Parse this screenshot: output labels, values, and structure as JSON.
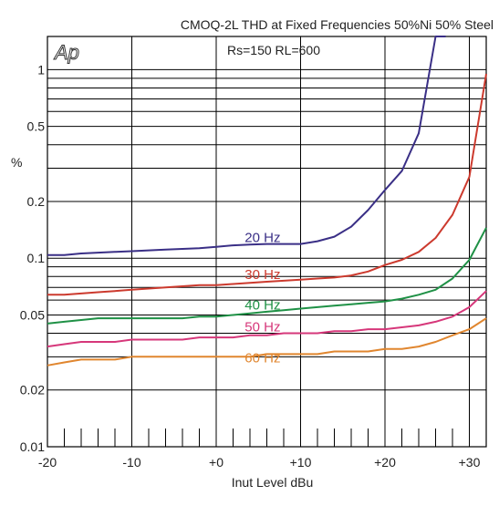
{
  "chart_data": {
    "type": "line",
    "title": "CMOQ-2L  THD at Fixed Frequencies  50%Ni 50% Steel",
    "subtitle": "Rs=150  RL=600",
    "logo": "Ap",
    "xlabel": "Inut Level  dBu",
    "ylabel": "%",
    "xlim": [
      -20,
      32
    ],
    "ylim": [
      0.01,
      1.5
    ],
    "yscale": "log",
    "grid": true,
    "x_ticks": [
      -20,
      -10,
      0,
      10,
      20,
      30
    ],
    "x_tick_labels": [
      "-20",
      "-10",
      "+0",
      "+10",
      "+20",
      "+30"
    ],
    "y_ticks": [
      0.01,
      0.02,
      0.05,
      0.1,
      0.2,
      0.5,
      1
    ],
    "y_tick_labels": [
      "0.01",
      "0.02",
      "0.05",
      "0.1",
      "0.2",
      "0.5",
      "1"
    ],
    "series": [
      {
        "name": "20 Hz",
        "color": "#3a2f86",
        "x": [
          -20,
          -18,
          -16,
          -14,
          -12,
          -10,
          -8,
          -6,
          -4,
          -2,
          0,
          2,
          4,
          6,
          8,
          10,
          12,
          14,
          16,
          18,
          20,
          22,
          24,
          26,
          27.2
        ],
        "y": [
          0.104,
          0.104,
          0.106,
          0.107,
          0.108,
          0.109,
          0.11,
          0.111,
          0.112,
          0.113,
          0.115,
          0.117,
          0.118,
          0.119,
          0.119,
          0.119,
          0.123,
          0.13,
          0.147,
          0.18,
          0.23,
          0.29,
          0.46,
          1.5,
          1.5
        ]
      },
      {
        "name": "30 Hz",
        "color": "#cc3a2e",
        "x": [
          -20,
          -18,
          -16,
          -14,
          -12,
          -10,
          -8,
          -6,
          -4,
          -2,
          0,
          2,
          4,
          6,
          8,
          10,
          12,
          14,
          16,
          18,
          20,
          22,
          24,
          26,
          28,
          30,
          32
        ],
        "y": [
          0.064,
          0.064,
          0.065,
          0.066,
          0.067,
          0.068,
          0.069,
          0.07,
          0.071,
          0.072,
          0.072,
          0.073,
          0.074,
          0.075,
          0.076,
          0.077,
          0.078,
          0.079,
          0.081,
          0.085,
          0.092,
          0.098,
          0.108,
          0.128,
          0.17,
          0.27,
          0.95
        ]
      },
      {
        "name": "40 Hz",
        "color": "#1f9146",
        "x": [
          -20,
          -18,
          -16,
          -14,
          -12,
          -10,
          -8,
          -6,
          -4,
          -2,
          0,
          2,
          4,
          6,
          8,
          10,
          12,
          14,
          16,
          18,
          20,
          22,
          24,
          26,
          28,
          30,
          32
        ],
        "y": [
          0.045,
          0.046,
          0.047,
          0.048,
          0.048,
          0.048,
          0.048,
          0.048,
          0.048,
          0.049,
          0.049,
          0.05,
          0.051,
          0.052,
          0.053,
          0.054,
          0.055,
          0.056,
          0.057,
          0.058,
          0.059,
          0.061,
          0.064,
          0.068,
          0.078,
          0.098,
          0.145
        ]
      },
      {
        "name": "50 Hz",
        "color": "#d6377a",
        "x": [
          -20,
          -18,
          -16,
          -14,
          -12,
          -10,
          -8,
          -6,
          -4,
          -2,
          0,
          2,
          4,
          6,
          8,
          10,
          12,
          14,
          16,
          18,
          20,
          22,
          24,
          26,
          28,
          30,
          32
        ],
        "y": [
          0.034,
          0.035,
          0.036,
          0.036,
          0.036,
          0.037,
          0.037,
          0.037,
          0.037,
          0.038,
          0.038,
          0.038,
          0.039,
          0.039,
          0.04,
          0.04,
          0.04,
          0.041,
          0.041,
          0.042,
          0.042,
          0.043,
          0.044,
          0.046,
          0.049,
          0.055,
          0.067
        ]
      },
      {
        "name": "60 Hz",
        "color": "#e0862f",
        "x": [
          -20,
          -18,
          -16,
          -14,
          -12,
          -10,
          -8,
          -6,
          -4,
          -2,
          0,
          2,
          4,
          6,
          8,
          10,
          12,
          14,
          16,
          18,
          20,
          22,
          24,
          26,
          28,
          30,
          32
        ],
        "y": [
          0.027,
          0.028,
          0.029,
          0.029,
          0.029,
          0.03,
          0.03,
          0.03,
          0.03,
          0.03,
          0.03,
          0.03,
          0.03,
          0.031,
          0.031,
          0.031,
          0.031,
          0.032,
          0.032,
          0.032,
          0.033,
          0.033,
          0.034,
          0.036,
          0.039,
          0.042,
          0.048
        ]
      }
    ],
    "annotations": [
      {
        "text": "20 Hz",
        "color": "#3a2f86",
        "x": 5.5,
        "y": 0.122
      },
      {
        "text": "30 Hz",
        "color": "#cc3a2e",
        "x": 5.5,
        "y": 0.0775
      },
      {
        "text": "40 Hz",
        "color": "#1f9146",
        "x": 5.5,
        "y": 0.0535
      },
      {
        "text": "50 Hz",
        "color": "#d6377a",
        "x": 5.5,
        "y": 0.041
      },
      {
        "text": "60 Hz",
        "color": "#e0862f",
        "x": 5.5,
        "y": 0.028
      }
    ]
  }
}
